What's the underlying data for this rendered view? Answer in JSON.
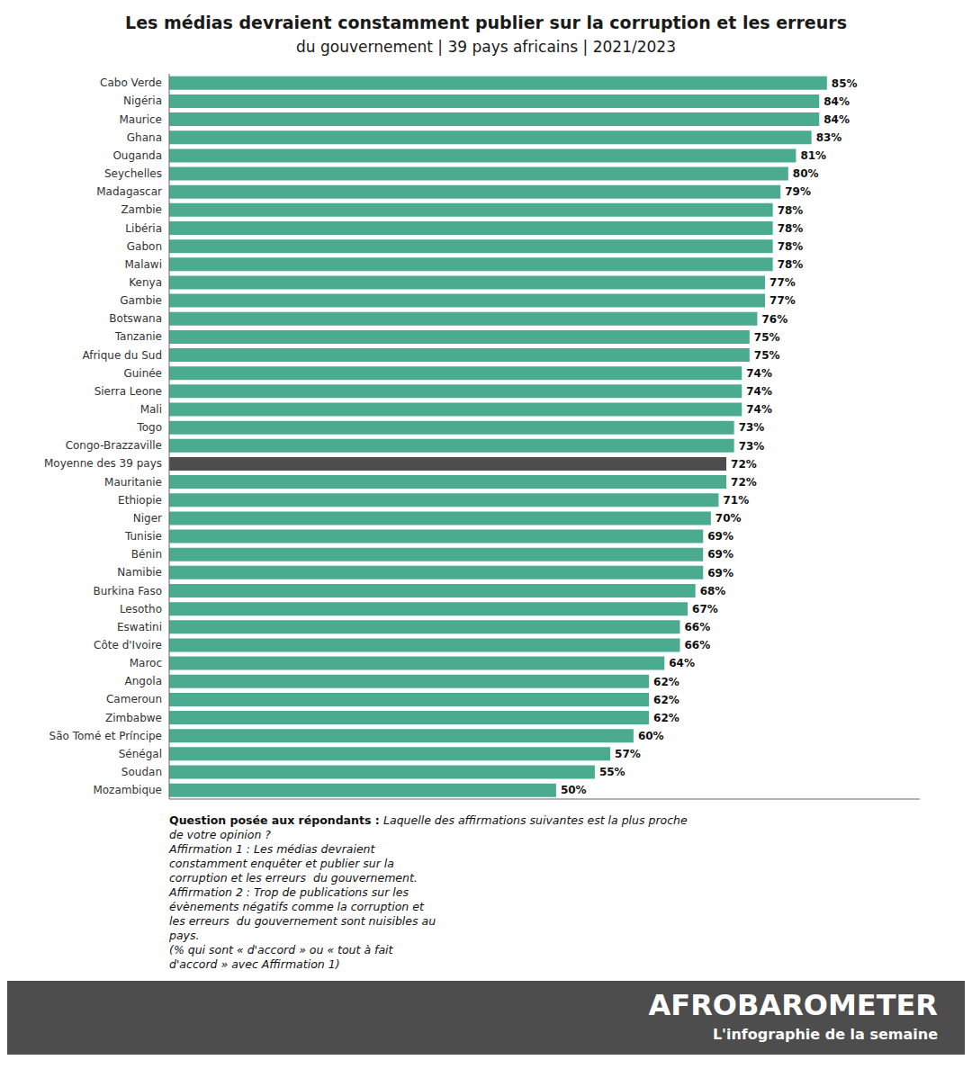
{
  "chart_data": {
    "type": "bar",
    "orientation": "horizontal",
    "title": "Les médias devraient constamment publier sur la corruption et les erreurs",
    "subtitle": "du gouvernement | 39 pays africains | 2021/2023",
    "categories": [
      "Cabo Verde",
      "Nigéria",
      "Maurice",
      "Ghana",
      "Ouganda",
      "Seychelles",
      "Madagascar",
      "Zambie",
      "Libéria",
      "Gabon",
      "Malawi",
      "Kenya",
      "Gambie",
      "Botswana",
      "Tanzanie",
      "Afrique du Sud",
      "Guinée",
      "Sierra Leone",
      "Mali",
      "Togo",
      "Congo-Brazzaville",
      "Moyenne des 39 pays",
      "Mauritanie",
      "Ethiopie",
      "Niger",
      "Tunisie",
      "Bénin",
      "Namibie",
      "Burkina Faso",
      "Lesotho",
      "Eswatini",
      "Côte d'Ivoire",
      "Maroc",
      "Angola",
      "Cameroun",
      "Zimbabwe",
      "São Tomé et Príncipe",
      "Sénégal",
      "Soudan",
      "Mozambique"
    ],
    "values": [
      85,
      84,
      84,
      83,
      81,
      80,
      79,
      78,
      78,
      78,
      78,
      77,
      77,
      76,
      75,
      75,
      74,
      74,
      74,
      73,
      73,
      72,
      72,
      71,
      70,
      69,
      69,
      69,
      68,
      67,
      66,
      66,
      64,
      62,
      62,
      62,
      60,
      57,
      55,
      50
    ],
    "value_labels": [
      "85%",
      "84%",
      "84%",
      "83%",
      "81%",
      "80%",
      "79%",
      "78%",
      "78%",
      "78%",
      "78%",
      "77%",
      "77%",
      "76%",
      "75%",
      "75%",
      "74%",
      "74%",
      "74%",
      "73%",
      "73%",
      "72%",
      "72%",
      "71%",
      "70%",
      "69%",
      "69%",
      "69%",
      "68%",
      "67%",
      "66%",
      "66%",
      "64%",
      "62%",
      "62%",
      "62%",
      "60%",
      "57%",
      "55%",
      "50%"
    ],
    "colors": [
      "#4aab8e",
      "#4aab8e",
      "#4aab8e",
      "#4aab8e",
      "#4aab8e",
      "#4aab8e",
      "#4aab8e",
      "#4aab8e",
      "#4aab8e",
      "#4aab8e",
      "#4aab8e",
      "#4aab8e",
      "#4aab8e",
      "#4aab8e",
      "#4aab8e",
      "#4aab8e",
      "#4aab8e",
      "#4aab8e",
      "#4aab8e",
      "#4aab8e",
      "#4aab8e",
      "#4d4d4d",
      "#4aab8e",
      "#4aab8e",
      "#4aab8e",
      "#4aab8e",
      "#4aab8e",
      "#4aab8e",
      "#4aab8e",
      "#4aab8e",
      "#4aab8e",
      "#4aab8e",
      "#4aab8e",
      "#4aab8e",
      "#4aab8e",
      "#4aab8e",
      "#4aab8e",
      "#4aab8e",
      "#4aab8e",
      "#4aab8e"
    ],
    "xlim": [
      0,
      97
    ],
    "data_labels": true,
    "tick_labels": "y",
    "grid": false,
    "annotations": [
      "Question posée aux répondants : Laquelle des affirmations suivantes est la plus proche\nde votre opinion ?\nAffirmation 1 : Les médias devraient\nconstamment enquêter et publier sur la\ncorruption et les erreurs  du gouvernement.\nAffirmation 2 : Trop de publications sur les\névènements négatifs comme la corruption et\nles erreurs  du gouvernement sont nuisibles au\npays.\n(% qui sont « d'accord » ou « tout à fait\nd'accord » avec Affirmation 1)",
      "AFROBAROMETER",
      "L'infographie de la semaine"
    ]
  }
}
